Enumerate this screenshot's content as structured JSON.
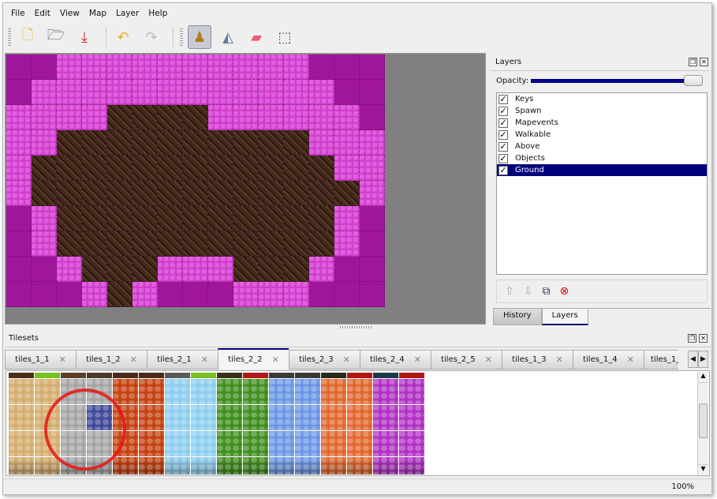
{
  "menu": [
    "File",
    "Edit",
    "View",
    "Map",
    "Layer",
    "Help"
  ],
  "toolbar": {
    "buttons": [
      {
        "name": "new-icon",
        "glyph": "🗋"
      },
      {
        "name": "open-icon",
        "glyph": "🗁"
      },
      {
        "name": "save-icon",
        "glyph": "⤓"
      },
      {
        "name": "undo-icon",
        "glyph": "↶"
      },
      {
        "name": "redo-icon",
        "glyph": "↷"
      },
      {
        "name": "stamp-brush-icon",
        "glyph": "♟",
        "active": true
      },
      {
        "name": "bucket-fill-icon",
        "glyph": "◭"
      },
      {
        "name": "eraser-icon",
        "glyph": "▰"
      },
      {
        "name": "rect-select-icon",
        "glyph": "⬚"
      }
    ]
  },
  "map": {
    "colors": {
      "M": "#a0169a",
      "P": "#d040cc",
      "D": "#45291f"
    },
    "rows": [
      "MMPPPPPPPPPPMMM",
      "MPPPPPPPPPPPPMM",
      "PPPPDDDDPPPPPPM",
      "PPDDDDDDDDDDPPP",
      "PDDDDDDDDDDDDPP",
      "PDDDDDDDDDDDDDP",
      "MPDDDDDDDDDDDPM",
      "MPDDDDDDDDDDDPM",
      "MMPDDDPPPDDDPMM",
      "MMMPDPMMMPPPMMM"
    ]
  },
  "layers_panel": {
    "title": "Layers",
    "opacity_label": "Opacity:",
    "opacity": 1.0,
    "layers": [
      {
        "name": "Keys",
        "visible": true
      },
      {
        "name": "Spawn",
        "visible": true
      },
      {
        "name": "Mapevents",
        "visible": true
      },
      {
        "name": "Walkable",
        "visible": true
      },
      {
        "name": "Above",
        "visible": true
      },
      {
        "name": "Objects",
        "visible": true
      },
      {
        "name": "Ground",
        "visible": true,
        "selected": true
      }
    ],
    "tabs": [
      "History",
      "Layers"
    ],
    "active_tab": "Layers"
  },
  "tilesets_panel": {
    "title": "Tilesets",
    "tabs": [
      "tiles_1_1",
      "tiles_1_2",
      "tiles_2_1",
      "tiles_2_2",
      "tiles_2_3",
      "tiles_2_4",
      "tiles_2_5",
      "tiles_1_3",
      "tiles_1_4",
      "tiles_1_"
    ],
    "active_tab": "tiles_2_2",
    "column_colors": [
      "#d4ac6c",
      "#d4ac6c",
      "#a4a4a4",
      "#a4a4a4",
      "#c4400e",
      "#c4400e",
      "#8ccdf0",
      "#8ccdf0",
      "#3e8e1c",
      "#3e8e1c",
      "#6a96e4",
      "#6a96e4",
      "#e0662c",
      "#e0662c",
      "#b030c4",
      "#b030c4"
    ],
    "strip_colors": [
      "#4a3018",
      "#78c020",
      "#5a4028",
      "#4a3a28",
      "#4a2a18",
      "#4a2a18",
      "#5a5a5a",
      "#78c020",
      "#3a3020",
      "#b01818",
      "#3a3a3a",
      "#3a3a3a",
      "#2a2a1a",
      "#b01818",
      "#1a3a4a",
      "#b01818"
    ],
    "selected_tile_color": "#3f4799"
  },
  "status": {
    "zoom": "100%"
  }
}
